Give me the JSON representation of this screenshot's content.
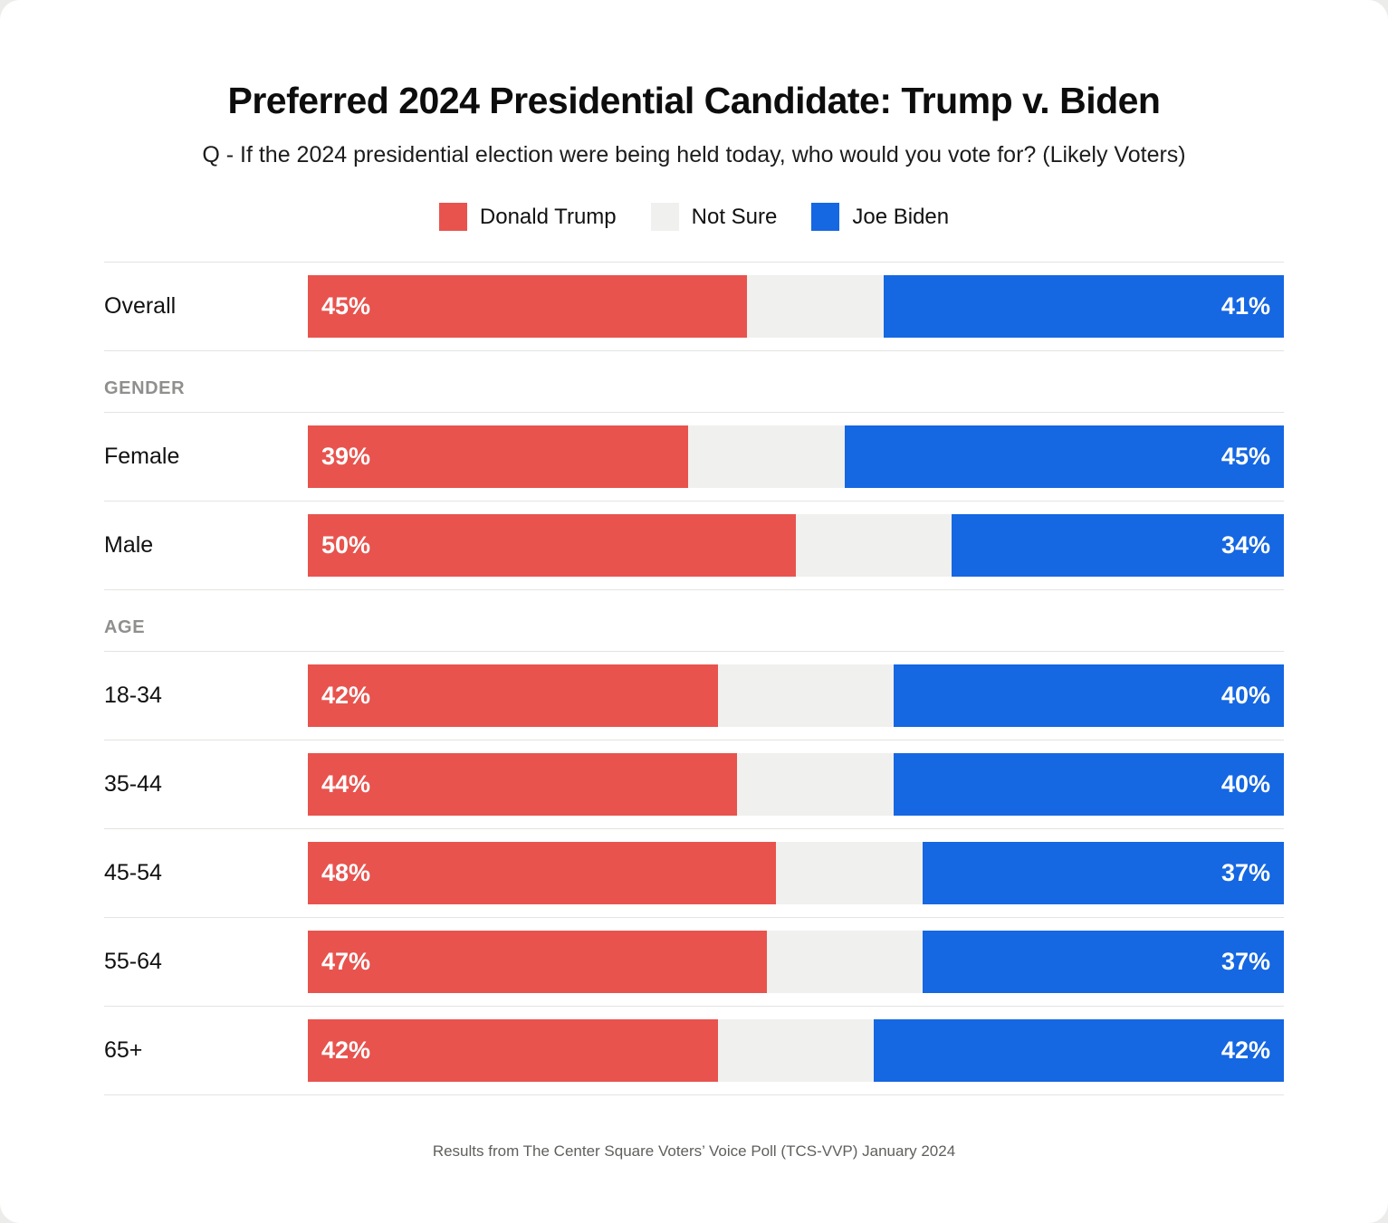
{
  "title": "Preferred 2024 Presidential Candidate: Trump v. Biden",
  "subtitle": "Q - If the 2024 presidential election were being held today, who would you vote for? (Likely Voters)",
  "footer": "Results from The Center Square Voters’ Voice Poll (TCS-VVP) January 2024",
  "colors": {
    "trump": "#e8534e",
    "not_sure": "#f0f0ee",
    "biden": "#1567e2"
  },
  "legend": [
    {
      "label": "Donald Trump",
      "color": "#e8534e"
    },
    {
      "label": "Not Sure",
      "color": "#f0f0ee"
    },
    {
      "label": "Joe Biden",
      "color": "#1567e2"
    }
  ],
  "chart_data": {
    "type": "bar",
    "orientation": "horizontal",
    "stacked": true,
    "value_unit": "%",
    "axis_range": [
      0,
      100
    ],
    "grid": false,
    "legend_position": "top-center",
    "series_names": [
      "Donald Trump",
      "Not Sure",
      "Joe Biden"
    ],
    "groups": [
      {
        "header": null,
        "rows": [
          {
            "label": "Overall",
            "trump": 45,
            "not_sure": 14,
            "biden": 41
          }
        ]
      },
      {
        "header": "GENDER",
        "rows": [
          {
            "label": "Female",
            "trump": 39,
            "not_sure": 16,
            "biden": 45
          },
          {
            "label": "Male",
            "trump": 50,
            "not_sure": 16,
            "biden": 34
          }
        ]
      },
      {
        "header": "AGE",
        "rows": [
          {
            "label": "18-34",
            "trump": 42,
            "not_sure": 18,
            "biden": 40
          },
          {
            "label": "35-44",
            "trump": 44,
            "not_sure": 16,
            "biden": 40
          },
          {
            "label": "45-54",
            "trump": 48,
            "not_sure": 15,
            "biden": 37
          },
          {
            "label": "55-64",
            "trump": 47,
            "not_sure": 16,
            "biden": 37
          },
          {
            "label": "65+",
            "trump": 42,
            "not_sure": 16,
            "biden": 42
          }
        ]
      }
    ]
  }
}
